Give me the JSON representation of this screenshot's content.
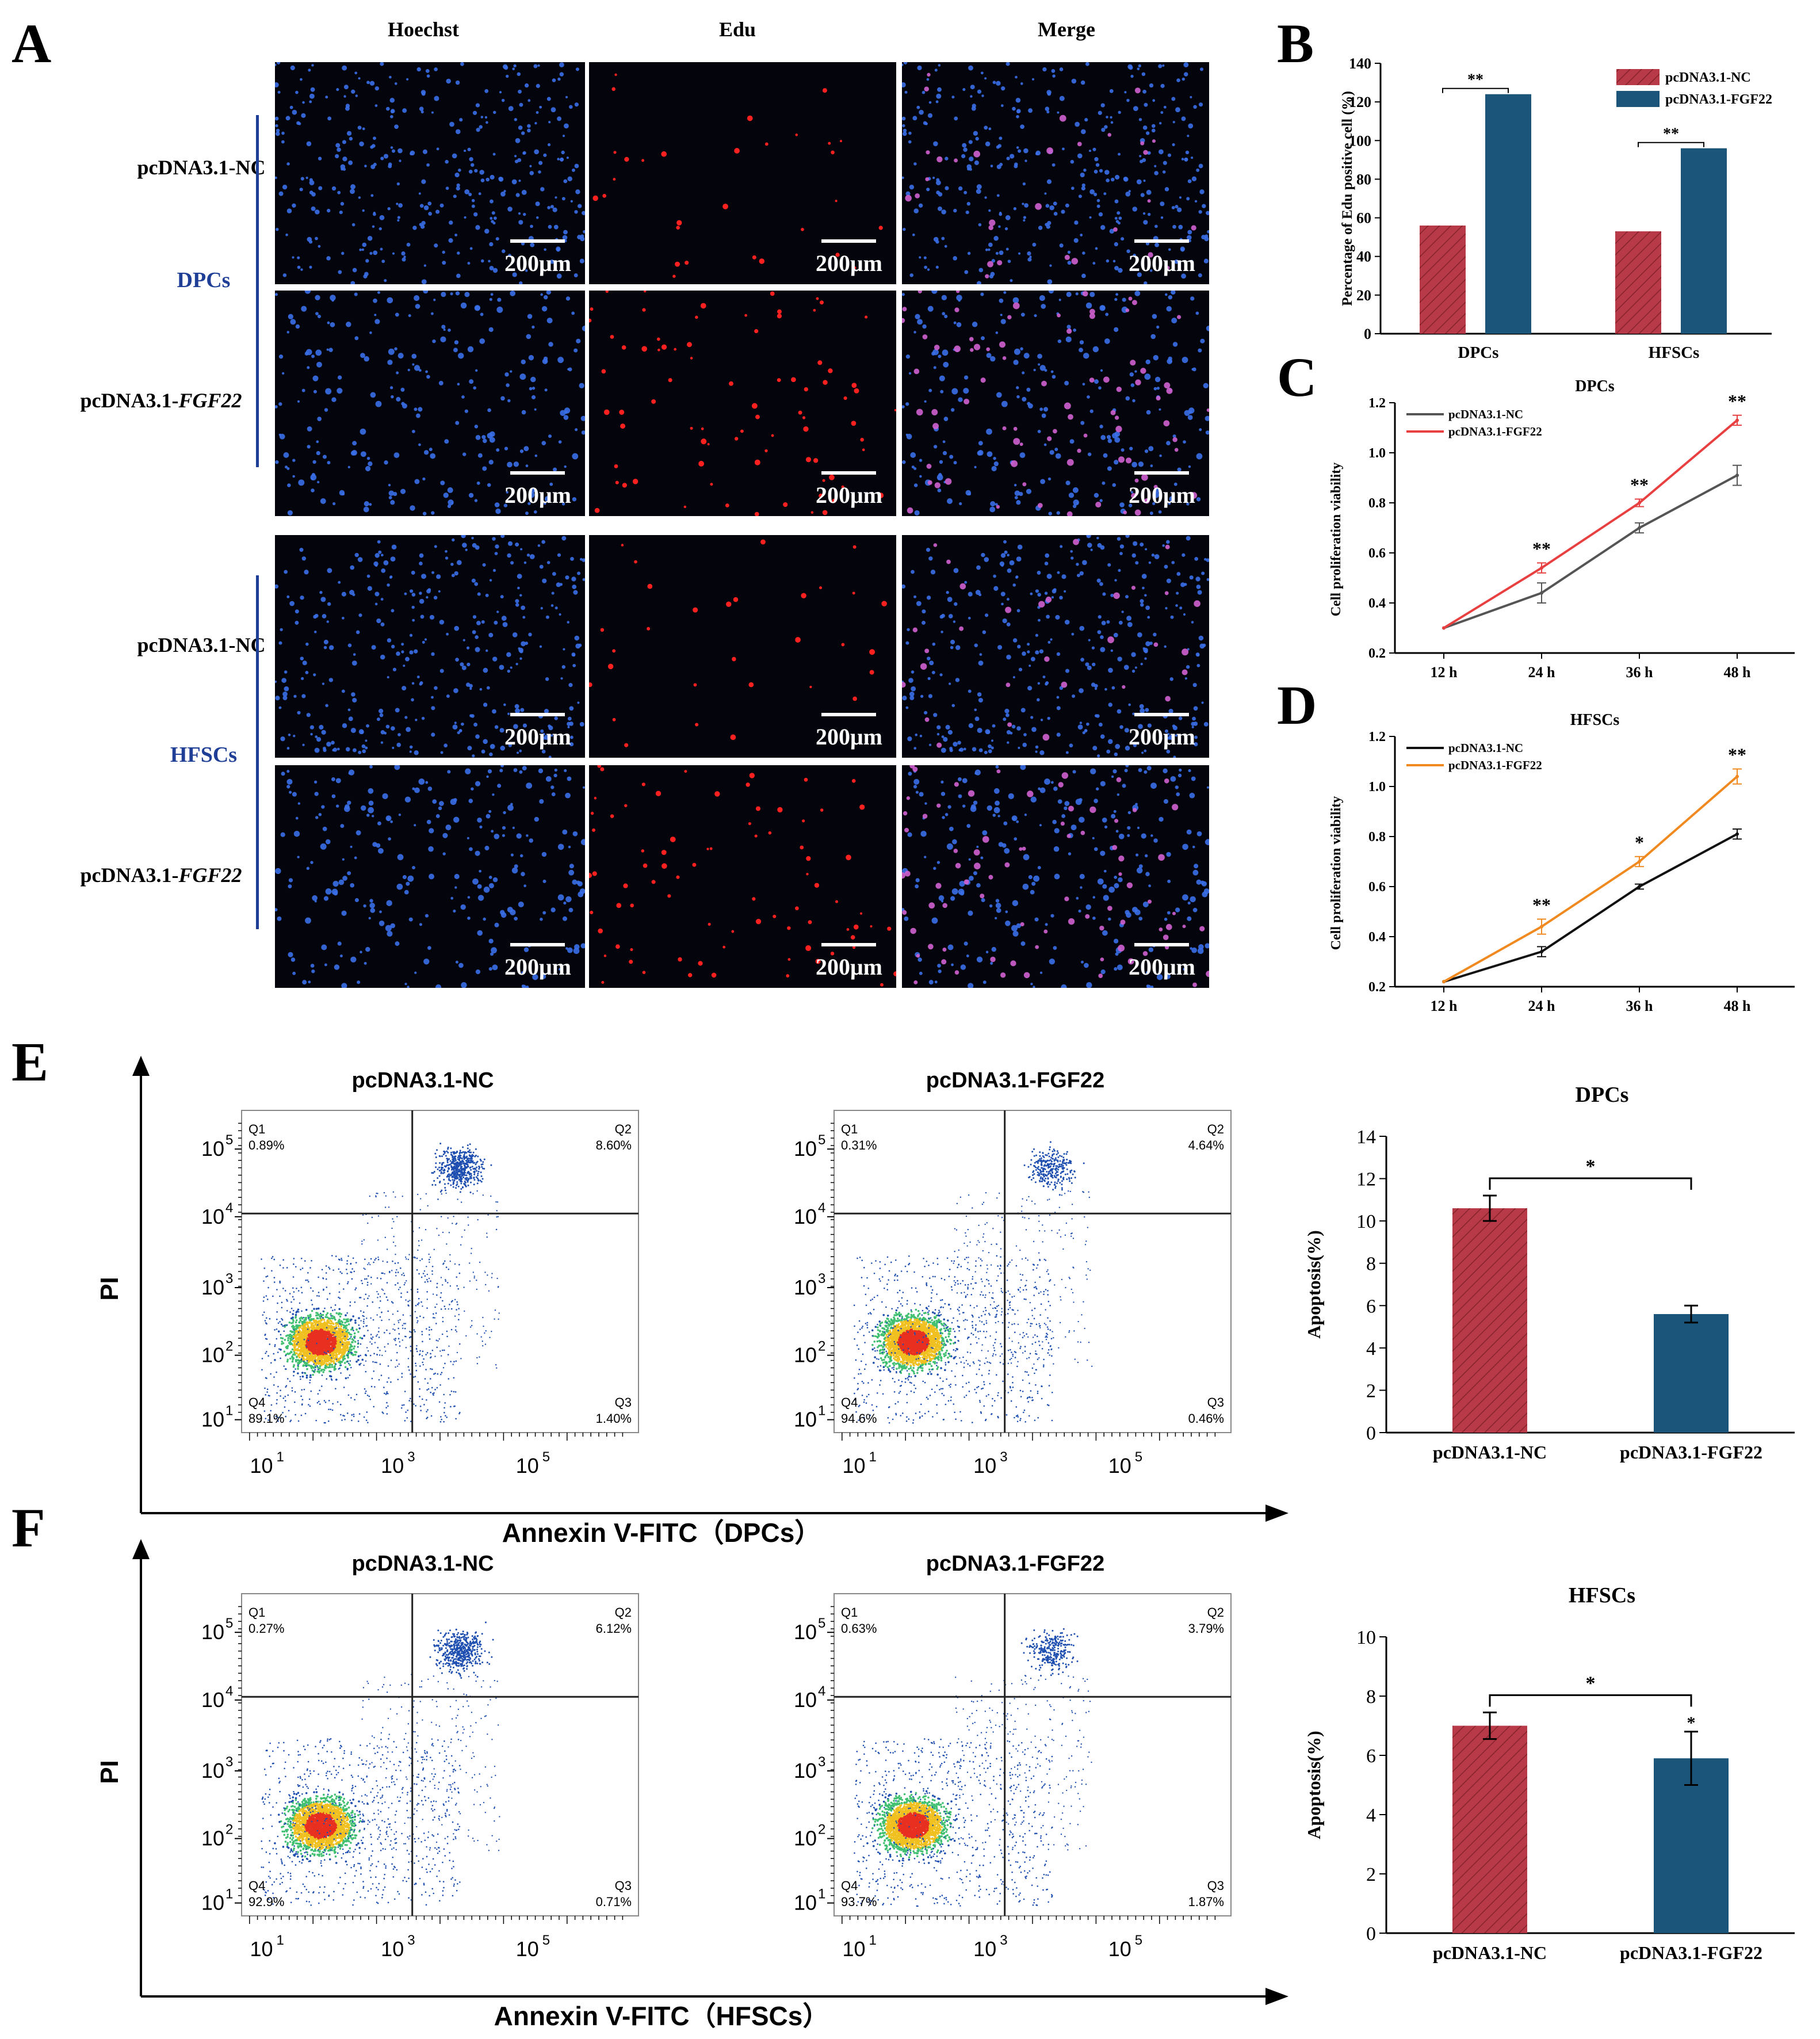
{
  "panel_labels": {
    "A": "A",
    "B": "B",
    "C": "C",
    "D": "D",
    "E": "E",
    "F": "F"
  },
  "panelA": {
    "columns": [
      "Hoechst",
      "Edu",
      "Merge"
    ],
    "groups": [
      {
        "name": "DPCs"
      },
      {
        "name": "HFSCs"
      }
    ],
    "row_labels": [
      {
        "prefix": "pcDNA3.1-NC",
        "gene": ""
      },
      {
        "prefix": "pcDNA3.1-",
        "gene": "FGF22"
      },
      {
        "prefix": "pcDNA3.1-NC",
        "gene": ""
      },
      {
        "prefix": "pcDNA3.1-",
        "gene": "FGF22"
      }
    ],
    "scale_bar": "200μm",
    "colors": {
      "hoechst": "#3a6fe8",
      "edu": "#ff2020",
      "merge_pink": "#d060d0",
      "group_label": "#1f3e96"
    }
  },
  "chart_data": [
    {
      "id": "B",
      "type": "bar",
      "ylabel": "Percentage of Edu positive cell (%)",
      "categories": [
        "DPCs",
        "HFSCs"
      ],
      "ylim": [
        0,
        140
      ],
      "yticks": [
        "0",
        "20",
        "40",
        "60",
        "80",
        "100",
        "120",
        "140"
      ],
      "legend": [
        "pcDNA3.1-NC",
        "pcDNA3.1-FGF22"
      ],
      "legend_position": "top-right",
      "series": [
        {
          "name": "pcDNA3.1-NC",
          "values": [
            56,
            53
          ],
          "color": "#b83a48"
        },
        {
          "name": "pcDNA3.1-FGF22",
          "values": [
            124,
            96
          ],
          "color": "#1b557a"
        }
      ],
      "annotations": [
        "**",
        "**"
      ]
    },
    {
      "id": "C",
      "type": "line",
      "title": "DPCs",
      "ylabel": "Cell proliferation viability",
      "x": [
        "12 h",
        "24 h",
        "36 h",
        "48 h"
      ],
      "ylim": [
        0.2,
        1.2
      ],
      "yticks": [
        "0.2",
        "0.4",
        "0.6",
        "0.8",
        "1.0",
        "1.2"
      ],
      "legend": [
        "pcDNA3.1-NC",
        "pcDNA3.1-FGF22"
      ],
      "legend_position": "top-left",
      "series": [
        {
          "name": "pcDNA3.1-NC",
          "values": [
            0.3,
            0.44,
            0.7,
            0.91
          ],
          "err": [
            0,
            0.04,
            0.02,
            0.04
          ],
          "color": "#555555"
        },
        {
          "name": "pcDNA3.1-FGF22",
          "values": [
            0.3,
            0.54,
            0.8,
            1.13
          ],
          "err": [
            0,
            0.02,
            0.015,
            0.02
          ],
          "color": "#e84040"
        }
      ],
      "annotations": [
        "",
        "**",
        "**",
        "**"
      ]
    },
    {
      "id": "D",
      "type": "line",
      "title": "HFSCs",
      "ylabel": "Cell proliferation viability",
      "x": [
        "12 h",
        "24 h",
        "36 h",
        "48 h"
      ],
      "ylim": [
        0.2,
        1.2
      ],
      "yticks": [
        "0.2",
        "0.4",
        "0.6",
        "0.8",
        "1.0",
        "1.2"
      ],
      "legend": [
        "pcDNA3.1-NC",
        "pcDNA3.1-FGF22"
      ],
      "legend_position": "top-left",
      "series": [
        {
          "name": "pcDNA3.1-NC",
          "values": [
            0.22,
            0.34,
            0.6,
            0.81
          ],
          "err": [
            0,
            0.02,
            0.01,
            0.02
          ],
          "color": "#111111"
        },
        {
          "name": "pcDNA3.1-FGF22",
          "values": [
            0.22,
            0.44,
            0.7,
            1.04
          ],
          "err": [
            0,
            0.03,
            0.02,
            0.03
          ],
          "color": "#f08a20"
        }
      ],
      "annotations": [
        "",
        "**",
        "*",
        "**"
      ]
    },
    {
      "id": "E-bar",
      "type": "bar",
      "title": "DPCs",
      "ylabel": "Apoptosis(%)",
      "categories": [
        "pcDNA3.1-NC",
        "pcDNA3.1-FGF22"
      ],
      "ylim": [
        0,
        14
      ],
      "yticks": [
        "0",
        "2",
        "4",
        "6",
        "8",
        "10",
        "12",
        "14"
      ],
      "values": [
        10.6,
        5.6
      ],
      "err": [
        0.6,
        0.4
      ],
      "colors": [
        "#b83a48",
        "#1b557a"
      ],
      "annotations": [
        "*"
      ]
    },
    {
      "id": "F-bar",
      "type": "bar",
      "title": "HFSCs",
      "ylabel": "Apoptosis(%)",
      "categories": [
        "pcDNA3.1-NC",
        "pcDNA3.1-FGF22"
      ],
      "ylim": [
        0,
        10
      ],
      "yticks": [
        "0",
        "2",
        "4",
        "6",
        "8",
        "10"
      ],
      "values": [
        7.0,
        5.9
      ],
      "err": [
        0.45,
        0.9
      ],
      "colors": [
        "#b83a48",
        "#1b557a"
      ],
      "annotations": [
        "*",
        "*"
      ]
    }
  ],
  "flow": {
    "E": {
      "axis_x": "Annexin V-FITC（DPCs）",
      "axis_y": "PI",
      "plots": [
        {
          "title": "pcDNA3.1-NC",
          "q1": "0.89%",
          "q2": "8.60%",
          "q3": "1.40%",
          "q4": "89.1%"
        },
        {
          "title": "pcDNA3.1-FGF22",
          "q1": "0.31%",
          "q2": "4.64%",
          "q3": "0.46%",
          "q4": "94.6%"
        }
      ]
    },
    "F": {
      "axis_x": "Annexin V-FITC（HFSCs）",
      "axis_y": "PI",
      "plots": [
        {
          "title": "pcDNA3.1-NC",
          "q1": "0.27%",
          "q2": "6.12%",
          "q3": "0.71%",
          "q4": "92.9%"
        },
        {
          "title": "pcDNA3.1-FGF22",
          "q1": "0.63%",
          "q2": "3.79%",
          "q3": "1.87%",
          "q4": "93.7%"
        }
      ]
    },
    "quadrant_names": [
      "Q1",
      "Q2",
      "Q3",
      "Q4"
    ],
    "log_ticks_y": [
      "10",
      "10",
      "10",
      "10",
      "10"
    ],
    "log_exps_y": [
      "5",
      "4",
      "3",
      "2",
      "1"
    ],
    "log_ticks_x": [
      "10",
      "10",
      "10"
    ],
    "log_exps_x": [
      "1",
      "3",
      "5"
    ]
  }
}
